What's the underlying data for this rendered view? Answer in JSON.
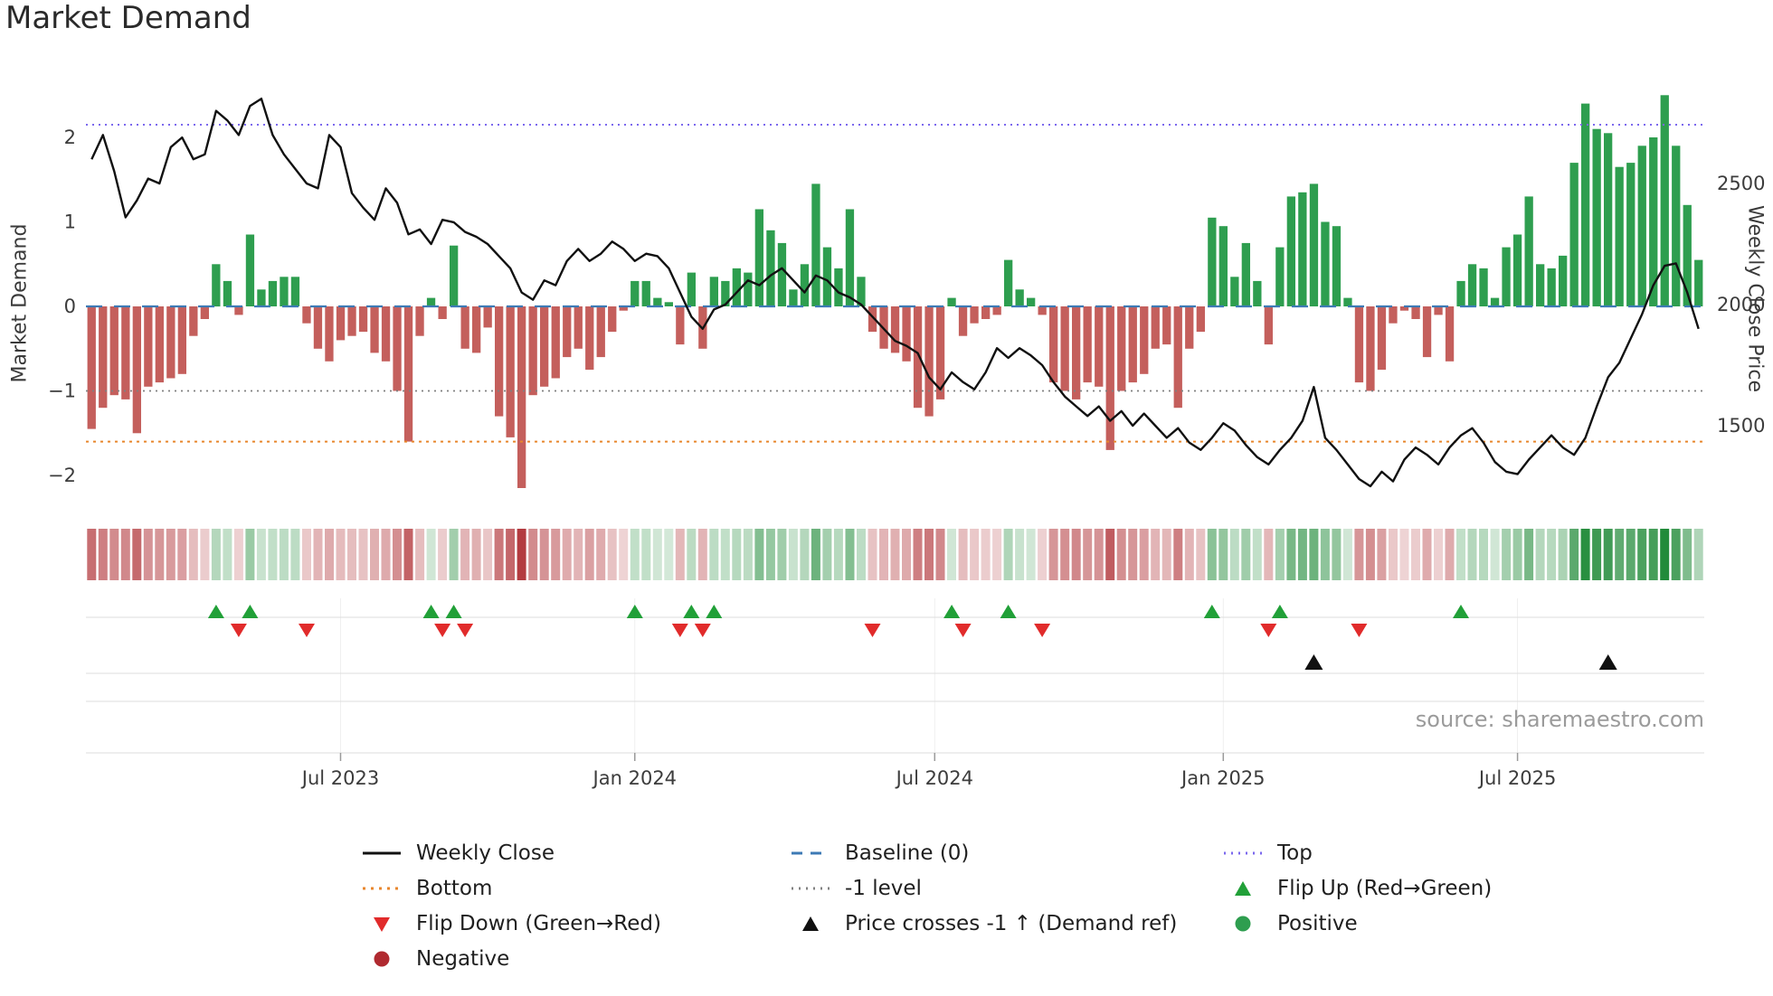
{
  "title": "Market Demand",
  "source": "source: sharemaestro.com",
  "axes": {
    "left_label": "Market Demand",
    "right_label": "Weekly Close Price",
    "left_ticks": [
      2,
      1,
      0,
      -1,
      -2
    ],
    "right_ticks": [
      2500,
      2000,
      1500
    ],
    "x_ticks": [
      {
        "label": "Jul 2023",
        "week": 22
      },
      {
        "label": "Jan 2024",
        "week": 48
      },
      {
        "label": "Jul 2024",
        "week": 74.5
      },
      {
        "label": "Jan 2025",
        "week": 100
      },
      {
        "label": "Jul 2025",
        "week": 126
      }
    ]
  },
  "chart_data": {
    "type": "bar+line",
    "title": "Market Demand",
    "x_unit": "week",
    "x_range": [
      "Feb 2023",
      "Nov 2025"
    ],
    "demand_axis": {
      "label": "Market Demand",
      "lim": [
        -2.4,
        2.75
      ]
    },
    "price_axis": {
      "label": "Weekly Close Price",
      "lim": [
        1150,
        2900
      ]
    },
    "legend_position": "bottom",
    "ref_lines": {
      "top": {
        "label": "Top",
        "value": 2.15
      },
      "baseline": {
        "label": "Baseline (0)",
        "value": 0
      },
      "minus1": {
        "label": "-1 level",
        "value": -1
      },
      "bottom": {
        "label": "Bottom",
        "value": -1.6
      }
    },
    "series": [
      {
        "name": "Demand",
        "type": "bar",
        "values": [
          -1.45,
          -1.2,
          -1.05,
          -1.1,
          -1.5,
          -0.95,
          -0.9,
          -0.85,
          -0.8,
          -0.35,
          -0.15,
          0.5,
          0.3,
          -0.1,
          0.85,
          0.2,
          0.3,
          0.35,
          0.35,
          -0.2,
          -0.5,
          -0.65,
          -0.4,
          -0.35,
          -0.3,
          -0.55,
          -0.65,
          -1.0,
          -1.6,
          -0.35,
          0.1,
          -0.15,
          0.72,
          -0.5,
          -0.55,
          -0.25,
          -1.3,
          -1.55,
          -2.15,
          -1.05,
          -0.95,
          -0.85,
          -0.6,
          -0.5,
          -0.75,
          -0.6,
          -0.3,
          -0.05,
          0.3,
          0.3,
          0.1,
          0.05,
          -0.45,
          0.4,
          -0.5,
          0.35,
          0.3,
          0.45,
          0.4,
          1.15,
          0.9,
          0.75,
          0.2,
          0.5,
          1.45,
          0.7,
          0.45,
          1.15,
          0.35,
          -0.3,
          -0.5,
          -0.55,
          -0.65,
          -1.2,
          -1.3,
          -1.1,
          0.1,
          -0.35,
          -0.2,
          -0.15,
          -0.1,
          0.55,
          0.2,
          0.1,
          -0.1,
          -0.9,
          -1.0,
          -1.1,
          -0.9,
          -0.95,
          -1.7,
          -1.0,
          -0.9,
          -0.8,
          -0.5,
          -0.45,
          -1.2,
          -0.5,
          -0.3,
          1.05,
          0.95,
          0.35,
          0.75,
          0.3,
          -0.45,
          0.7,
          1.3,
          1.35,
          1.45,
          1.0,
          0.95,
          0.1,
          -0.9,
          -1.0,
          -0.75,
          -0.2,
          -0.05,
          -0.15,
          -0.6,
          -0.1,
          -0.65,
          0.3,
          0.5,
          0.45,
          0.1,
          0.7,
          0.85,
          1.3,
          0.5,
          0.45,
          0.6,
          1.7,
          2.4,
          2.1,
          2.05,
          1.65,
          1.7,
          1.9,
          2.0,
          2.5,
          1.9,
          1.2,
          0.55
        ]
      },
      {
        "name": "Weekly Close",
        "type": "line",
        "values": [
          2600,
          2700,
          2550,
          2360,
          2430,
          2520,
          2500,
          2650,
          2690,
          2600,
          2620,
          2800,
          2760,
          2700,
          2820,
          2850,
          2700,
          2620,
          2560,
          2500,
          2480,
          2700,
          2650,
          2460,
          2400,
          2350,
          2480,
          2420,
          2290,
          2310,
          2250,
          2350,
          2340,
          2300,
          2280,
          2250,
          2200,
          2150,
          2050,
          2020,
          2100,
          2080,
          2180,
          2230,
          2180,
          2210,
          2260,
          2230,
          2180,
          2210,
          2200,
          2150,
          2050,
          1950,
          1900,
          1980,
          2000,
          2050,
          2100,
          2080,
          2120,
          2150,
          2100,
          2050,
          2120,
          2100,
          2050,
          2030,
          2000,
          1950,
          1900,
          1850,
          1830,
          1800,
          1700,
          1650,
          1720,
          1680,
          1650,
          1720,
          1820,
          1780,
          1820,
          1790,
          1750,
          1680,
          1620,
          1580,
          1540,
          1580,
          1520,
          1560,
          1500,
          1550,
          1500,
          1450,
          1490,
          1430,
          1400,
          1450,
          1510,
          1480,
          1420,
          1370,
          1340,
          1400,
          1450,
          1520,
          1660,
          1450,
          1400,
          1340,
          1280,
          1250,
          1310,
          1270,
          1360,
          1410,
          1380,
          1340,
          1410,
          1460,
          1490,
          1430,
          1350,
          1310,
          1300,
          1360,
          1410,
          1460,
          1410,
          1380,
          1450,
          1580,
          1700,
          1760,
          1860,
          1960,
          2080,
          2160,
          2170,
          2050,
          1900
        ]
      }
    ],
    "markers": {
      "flip_up_weeks": [
        11,
        14,
        30,
        32,
        48,
        53,
        55,
        76,
        81,
        99,
        105,
        121
      ],
      "flip_down_weeks": [
        13,
        19,
        31,
        33,
        52,
        54,
        69,
        77,
        84,
        104,
        112
      ],
      "price_cross_minus1_weeks": [
        108,
        134
      ]
    },
    "heatmap_strip": "demand values shown as red/green intensity cells",
    "colors": {
      "positive": "#2e9e4f",
      "negative": "#c45f5c",
      "line": "#111111",
      "baseline": "#3d7ab5",
      "top": "#7b68ee",
      "bottom": "#e8862c",
      "minus1": "#808080",
      "flip_up": "#21a038",
      "flip_down": "#e12b2b",
      "cross": "#111111",
      "positive_dot": "#2e9e4f",
      "negative_dot": "#b02a30",
      "heat_green": "34,139,58",
      "heat_red": "170,35,40"
    }
  },
  "legend": {
    "weekly_close": "Weekly Close",
    "baseline": "Baseline (0)",
    "top": "Top",
    "bottom": "Bottom",
    "minus1": "-1 level",
    "flip_up": "Flip Up (Red→Green)",
    "flip_down": "Flip Down (Green→Red)",
    "cross": "Price crosses -1 ↑ (Demand ref)",
    "positive": "Positive",
    "negative": "Negative"
  }
}
